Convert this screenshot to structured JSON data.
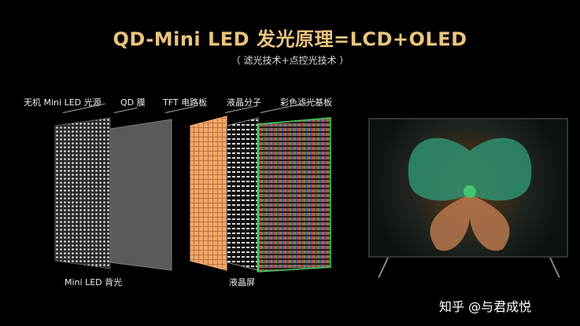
{
  "header": {
    "title": "QD-Mini LED 发光原理=LCD+OLED",
    "subtitle": "（ 滤光技术+点控光技术 ）"
  },
  "layers": {
    "mini_led_source": "无机 Mini LED 光源",
    "qd_film": "QD 膜",
    "tft_board": "TFT 电路板",
    "liquid_crystal": "液晶分子",
    "color_filter": "彩色滤光基板"
  },
  "groups": {
    "backlight": "Mini LED 背光",
    "lcd_screen": "液晶屏"
  },
  "watermark": "知乎 @与君成悦",
  "colors": {
    "title": "#e9c47f",
    "tft": "#f0a060",
    "filter_edge": "#3ecf5a"
  }
}
